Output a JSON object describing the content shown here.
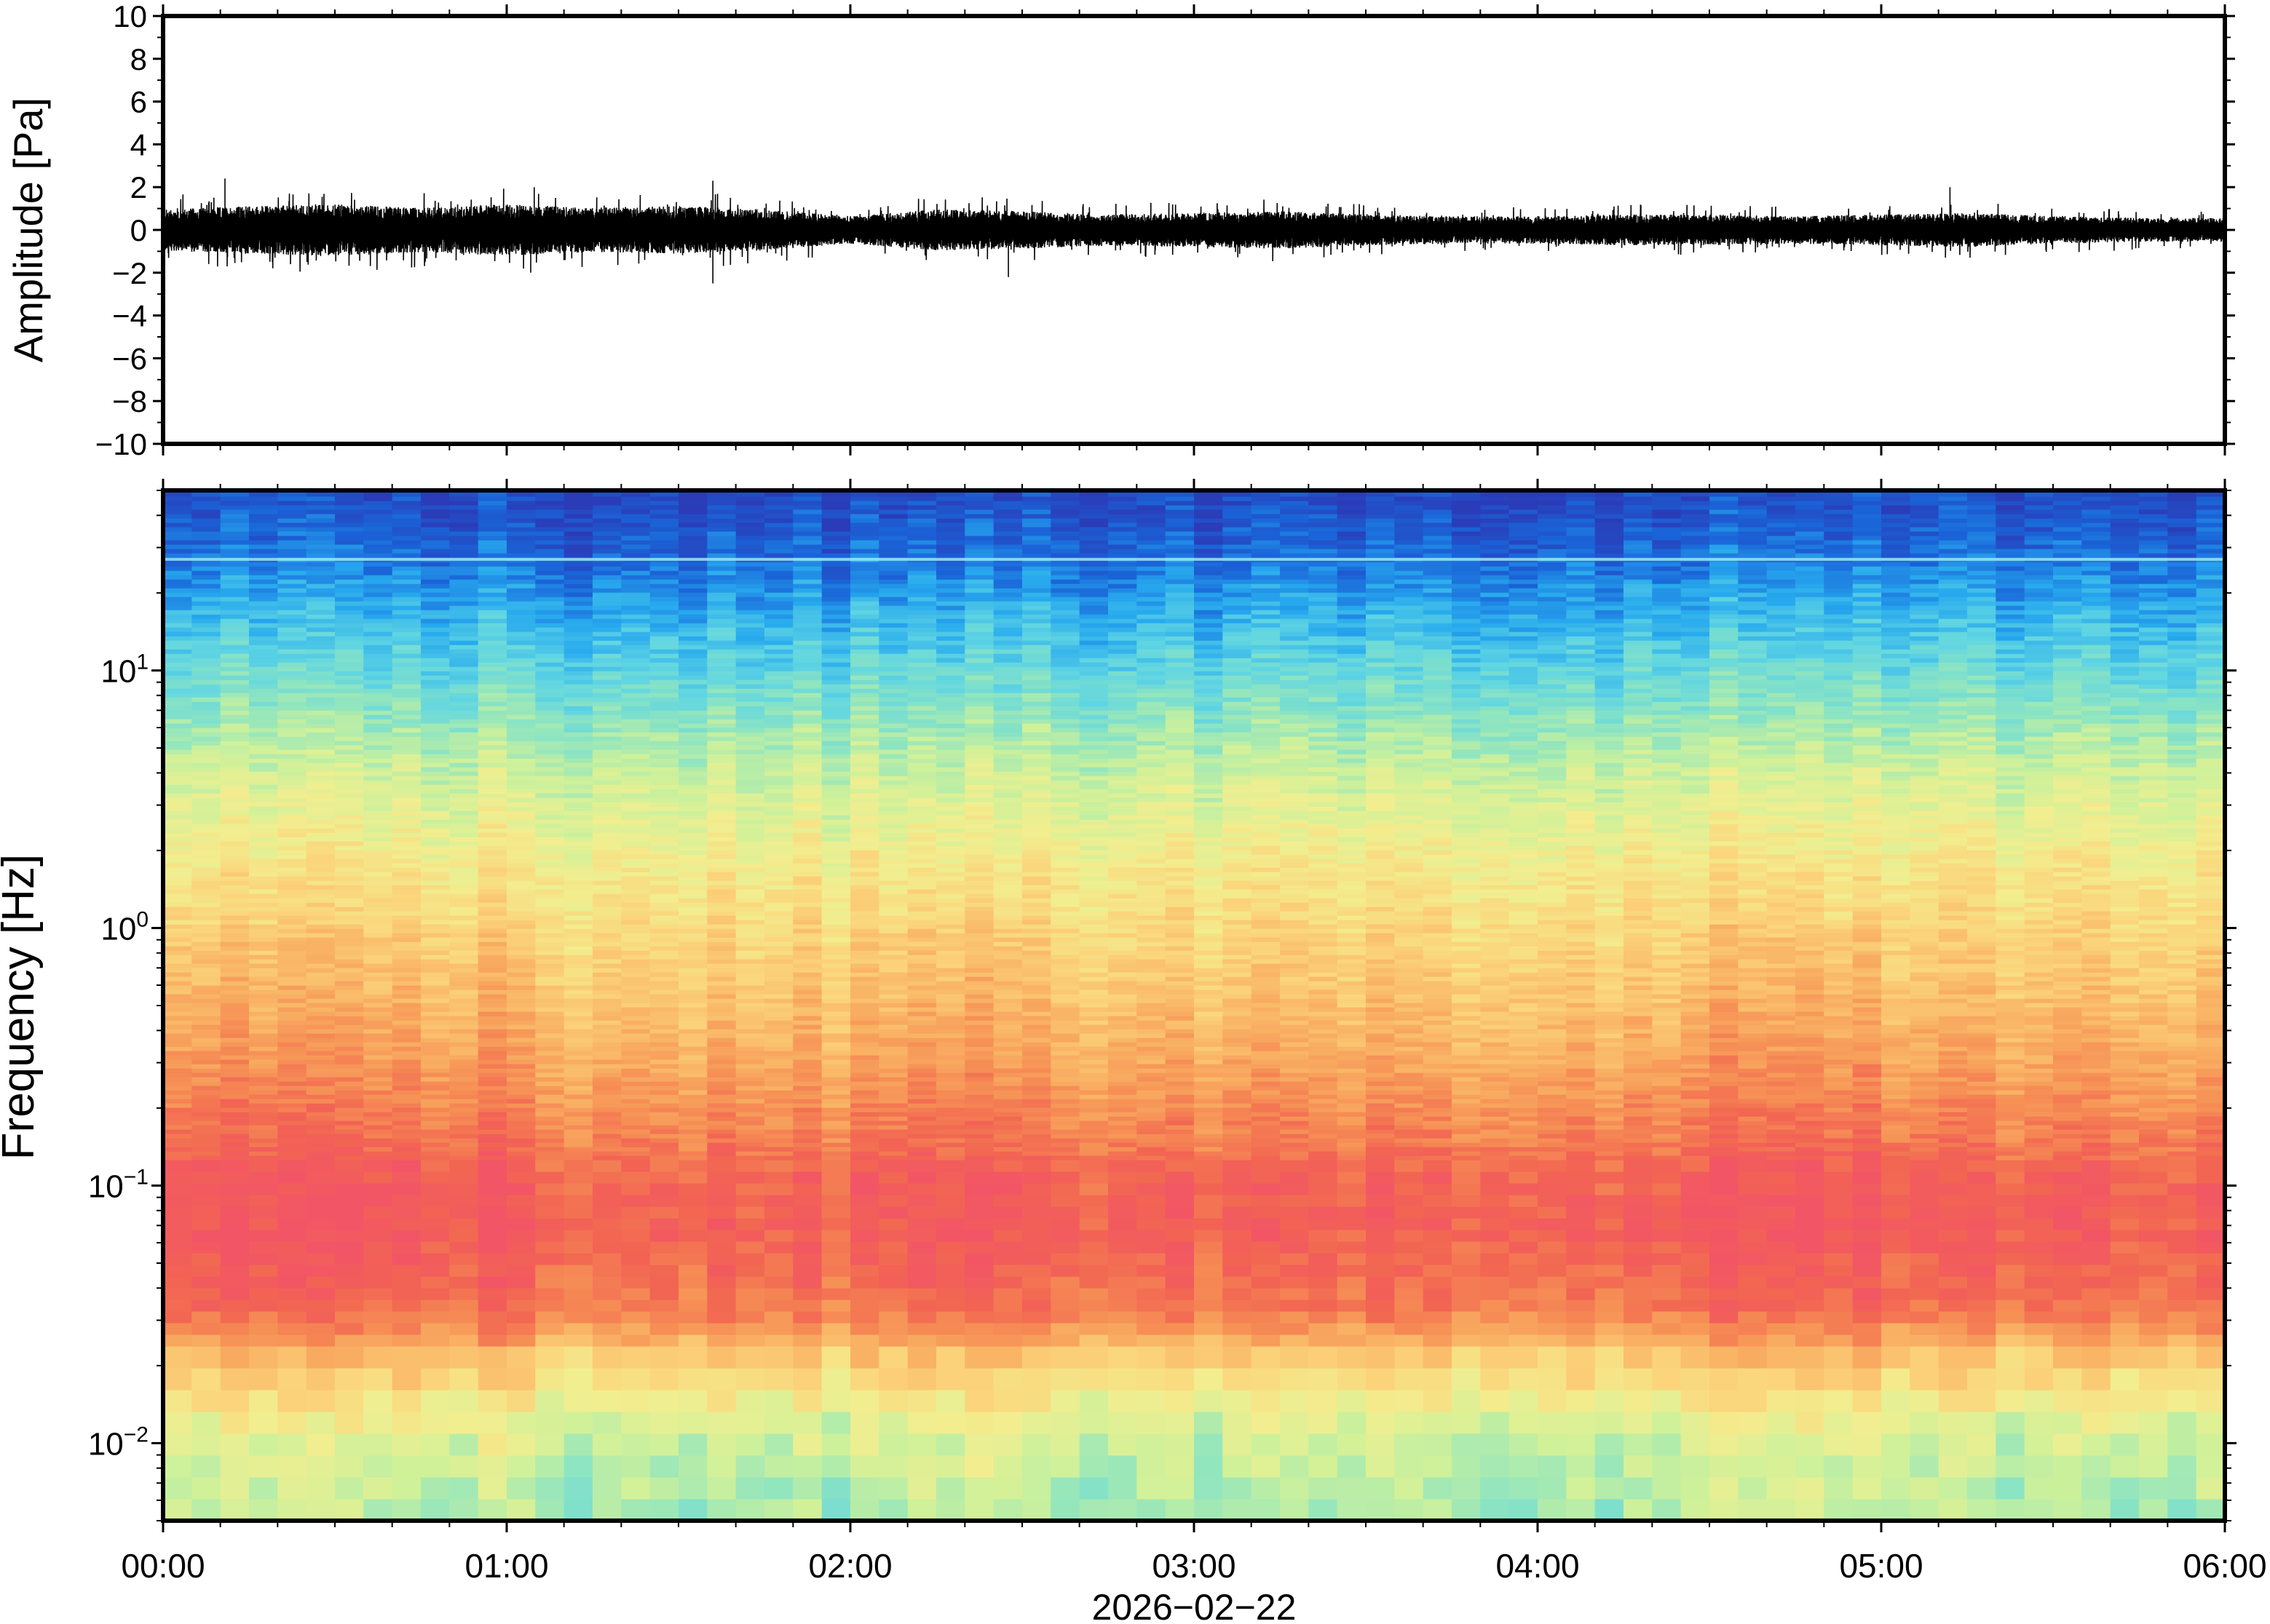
{
  "chart_data": [
    {
      "type": "line",
      "panel": "waveform",
      "ylabel": "Amplitude [Pa]",
      "ylim": [
        -10,
        10
      ],
      "yticks": [
        -10,
        -8,
        -6,
        -4,
        -2,
        0,
        2,
        4,
        6,
        8,
        10
      ],
      "ytick_labels": [
        "−10",
        "−8",
        "−6",
        "−4",
        "−2",
        "0",
        "2",
        "4",
        "6",
        "8",
        "10"
      ],
      "xlim_hours": [
        0,
        6
      ],
      "grid": false,
      "series": [
        {
          "color": "#000000",
          "x_hours": [
            0.0,
            0.25,
            0.5,
            0.75,
            1.0,
            1.25,
            1.5,
            1.75,
            2.0,
            2.25,
            2.5,
            2.75,
            3.0,
            3.25,
            3.5,
            3.75,
            4.0,
            4.25,
            4.5,
            4.75,
            5.0,
            5.25,
            5.5,
            5.75,
            6.0
          ],
          "envelope_pa": [
            1.2,
            1.4,
            1.5,
            1.3,
            1.5,
            1.3,
            1.4,
            1.2,
            0.8,
            1.2,
            1.1,
            0.9,
            1.0,
            1.1,
            0.9,
            0.8,
            0.8,
            0.9,
            0.9,
            0.8,
            0.9,
            1.0,
            0.8,
            0.7,
            0.7
          ]
        }
      ],
      "peaks": [
        {
          "x_hours": 0.18,
          "y_pa": 2.4
        },
        {
          "x_hours": 1.08,
          "y_pa": 2.0
        },
        {
          "x_hours": 1.07,
          "y_pa": -2.0
        },
        {
          "x_hours": 1.6,
          "y_pa": 2.3
        },
        {
          "x_hours": 1.6,
          "y_pa": -2.5
        },
        {
          "x_hours": 2.46,
          "y_pa": -2.2
        },
        {
          "x_hours": 5.2,
          "y_pa": 2.0
        }
      ]
    },
    {
      "type": "heatmap",
      "panel": "spectrogram",
      "ylabel": "Frequency [Hz]",
      "yscale": "log",
      "ylim_hz": [
        0.005,
        50
      ],
      "ytick_labels": [
        {
          "base": "10",
          "exp": "1",
          "value": 10
        },
        {
          "base": "10",
          "exp": "0",
          "value": 1
        },
        {
          "base": "10",
          "exp": "−1",
          "value": 0.1
        },
        {
          "base": "10",
          "exp": "−2",
          "value": 0.01
        }
      ],
      "xlabel": "2026−02−22",
      "xlim_hours": [
        0,
        6
      ],
      "xtick_labels": [
        "00:00",
        "01:00",
        "02:00",
        "03:00",
        "04:00",
        "05:00",
        "06:00"
      ],
      "colormap": [
        "#2a3cb8",
        "#1a64d8",
        "#27a9ee",
        "#5fd5e3",
        "#8fe5c0",
        "#cff19a",
        "#f2ee8f",
        "#fbd47b",
        "#f9b465",
        "#f68f55",
        "#f26552",
        "#f25566"
      ],
      "columns": 72,
      "level_profile": [
        {
          "log10_hz": -2.3,
          "level": 0.4
        },
        {
          "log10_hz": -2.0,
          "level": 0.46
        },
        {
          "log10_hz": -1.7,
          "level": 0.66
        },
        {
          "log10_hz": -1.5,
          "level": 0.86
        },
        {
          "log10_hz": -1.2,
          "level": 0.93
        },
        {
          "log10_hz": -1.0,
          "level": 0.92
        },
        {
          "log10_hz": -0.8,
          "level": 0.84
        },
        {
          "log10_hz": -0.5,
          "level": 0.74
        },
        {
          "log10_hz": -0.2,
          "level": 0.66
        },
        {
          "log10_hz": 0.2,
          "level": 0.57
        },
        {
          "log10_hz": 0.6,
          "level": 0.45
        },
        {
          "log10_hz": 0.9,
          "level": 0.32
        },
        {
          "log10_hz": 1.2,
          "level": 0.2
        },
        {
          "log10_hz": 1.45,
          "level": 0.09
        },
        {
          "log10_hz": 1.7,
          "level": 0.02
        }
      ],
      "high_level_hours": [
        [
          0.0,
          1.1
        ],
        [
          2.1,
          2.5
        ],
        [
          4.4,
          5.0
        ]
      ],
      "tone_line_hz": 27
    }
  ]
}
